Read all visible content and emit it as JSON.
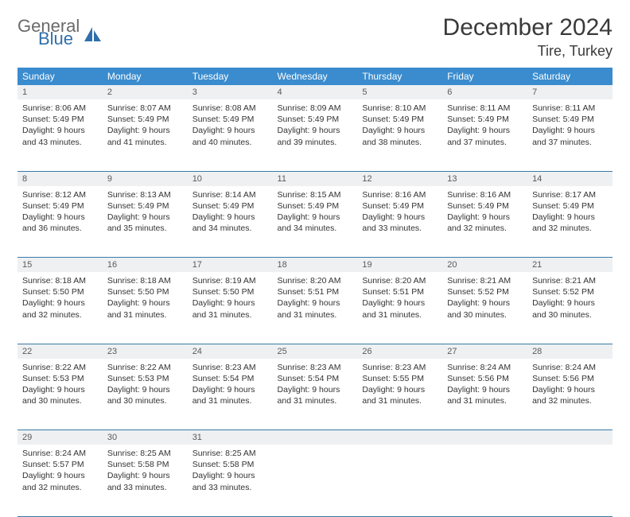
{
  "brand": {
    "word1": "General",
    "word2": "Blue"
  },
  "title": "December 2024",
  "location": "Tire, Turkey",
  "colors": {
    "header_bg": "#3a8cce",
    "header_text": "#ffffff",
    "daynum_bg": "#eef0f2",
    "daynum_text": "#5a5a5a",
    "border": "#3a7aa8",
    "body_text": "#333333",
    "logo_gray": "#6a6a6a",
    "logo_blue": "#2f6fab"
  },
  "weekdays": [
    "Sunday",
    "Monday",
    "Tuesday",
    "Wednesday",
    "Thursday",
    "Friday",
    "Saturday"
  ],
  "weeks": [
    [
      {
        "n": "1",
        "sr": "8:06 AM",
        "ss": "5:49 PM",
        "dl": "9 hours and 43 minutes."
      },
      {
        "n": "2",
        "sr": "8:07 AM",
        "ss": "5:49 PM",
        "dl": "9 hours and 41 minutes."
      },
      {
        "n": "3",
        "sr": "8:08 AM",
        "ss": "5:49 PM",
        "dl": "9 hours and 40 minutes."
      },
      {
        "n": "4",
        "sr": "8:09 AM",
        "ss": "5:49 PM",
        "dl": "9 hours and 39 minutes."
      },
      {
        "n": "5",
        "sr": "8:10 AM",
        "ss": "5:49 PM",
        "dl": "9 hours and 38 minutes."
      },
      {
        "n": "6",
        "sr": "8:11 AM",
        "ss": "5:49 PM",
        "dl": "9 hours and 37 minutes."
      },
      {
        "n": "7",
        "sr": "8:11 AM",
        "ss": "5:49 PM",
        "dl": "9 hours and 37 minutes."
      }
    ],
    [
      {
        "n": "8",
        "sr": "8:12 AM",
        "ss": "5:49 PM",
        "dl": "9 hours and 36 minutes."
      },
      {
        "n": "9",
        "sr": "8:13 AM",
        "ss": "5:49 PM",
        "dl": "9 hours and 35 minutes."
      },
      {
        "n": "10",
        "sr": "8:14 AM",
        "ss": "5:49 PM",
        "dl": "9 hours and 34 minutes."
      },
      {
        "n": "11",
        "sr": "8:15 AM",
        "ss": "5:49 PM",
        "dl": "9 hours and 34 minutes."
      },
      {
        "n": "12",
        "sr": "8:16 AM",
        "ss": "5:49 PM",
        "dl": "9 hours and 33 minutes."
      },
      {
        "n": "13",
        "sr": "8:16 AM",
        "ss": "5:49 PM",
        "dl": "9 hours and 32 minutes."
      },
      {
        "n": "14",
        "sr": "8:17 AM",
        "ss": "5:49 PM",
        "dl": "9 hours and 32 minutes."
      }
    ],
    [
      {
        "n": "15",
        "sr": "8:18 AM",
        "ss": "5:50 PM",
        "dl": "9 hours and 32 minutes."
      },
      {
        "n": "16",
        "sr": "8:18 AM",
        "ss": "5:50 PM",
        "dl": "9 hours and 31 minutes."
      },
      {
        "n": "17",
        "sr": "8:19 AM",
        "ss": "5:50 PM",
        "dl": "9 hours and 31 minutes."
      },
      {
        "n": "18",
        "sr": "8:20 AM",
        "ss": "5:51 PM",
        "dl": "9 hours and 31 minutes."
      },
      {
        "n": "19",
        "sr": "8:20 AM",
        "ss": "5:51 PM",
        "dl": "9 hours and 31 minutes."
      },
      {
        "n": "20",
        "sr": "8:21 AM",
        "ss": "5:52 PM",
        "dl": "9 hours and 30 minutes."
      },
      {
        "n": "21",
        "sr": "8:21 AM",
        "ss": "5:52 PM",
        "dl": "9 hours and 30 minutes."
      }
    ],
    [
      {
        "n": "22",
        "sr": "8:22 AM",
        "ss": "5:53 PM",
        "dl": "9 hours and 30 minutes."
      },
      {
        "n": "23",
        "sr": "8:22 AM",
        "ss": "5:53 PM",
        "dl": "9 hours and 30 minutes."
      },
      {
        "n": "24",
        "sr": "8:23 AM",
        "ss": "5:54 PM",
        "dl": "9 hours and 31 minutes."
      },
      {
        "n": "25",
        "sr": "8:23 AM",
        "ss": "5:54 PM",
        "dl": "9 hours and 31 minutes."
      },
      {
        "n": "26",
        "sr": "8:23 AM",
        "ss": "5:55 PM",
        "dl": "9 hours and 31 minutes."
      },
      {
        "n": "27",
        "sr": "8:24 AM",
        "ss": "5:56 PM",
        "dl": "9 hours and 31 minutes."
      },
      {
        "n": "28",
        "sr": "8:24 AM",
        "ss": "5:56 PM",
        "dl": "9 hours and 32 minutes."
      }
    ],
    [
      {
        "n": "29",
        "sr": "8:24 AM",
        "ss": "5:57 PM",
        "dl": "9 hours and 32 minutes."
      },
      {
        "n": "30",
        "sr": "8:25 AM",
        "ss": "5:58 PM",
        "dl": "9 hours and 33 minutes."
      },
      {
        "n": "31",
        "sr": "8:25 AM",
        "ss": "5:58 PM",
        "dl": "9 hours and 33 minutes."
      },
      null,
      null,
      null,
      null
    ]
  ],
  "labels": {
    "sunrise": "Sunrise:",
    "sunset": "Sunset:",
    "daylight": "Daylight:"
  }
}
